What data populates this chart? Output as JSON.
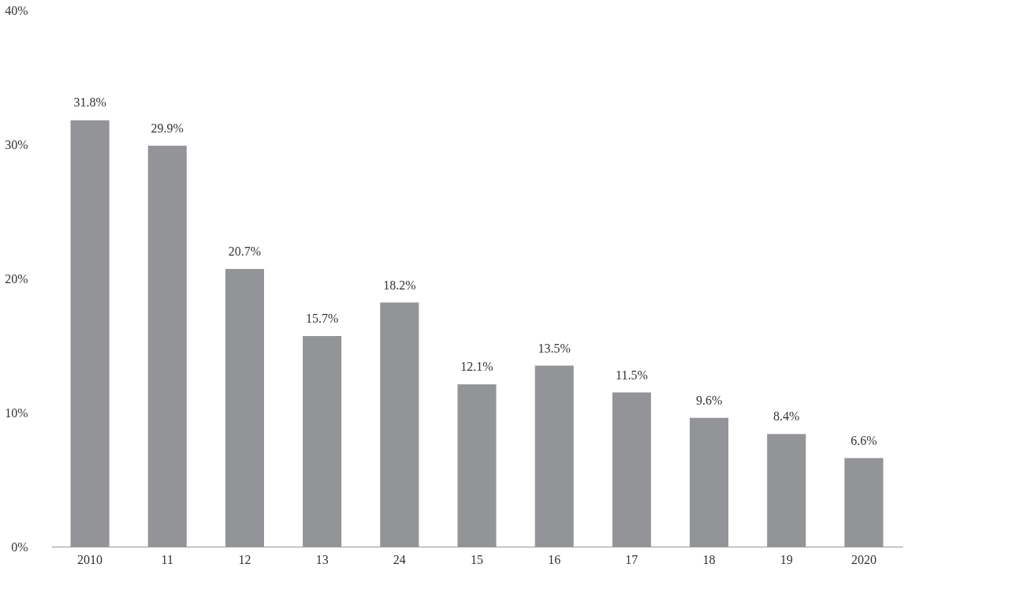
{
  "chart_data": {
    "type": "bar",
    "categories": [
      "2010",
      "11",
      "12",
      "13",
      "24",
      "15",
      "16",
      "17",
      "18",
      "19",
      "2020"
    ],
    "values": [
      31.8,
      29.9,
      20.7,
      15.7,
      18.2,
      12.1,
      13.5,
      11.5,
      9.6,
      8.4,
      6.6
    ],
    "color": "#939497",
    "value_labels": [
      "31.8%",
      "29.9%",
      "20.7%",
      "15.7%",
      "18.2%",
      "12.1%",
      "13.5%",
      "11.5%",
      "9.6%",
      "8.4%",
      "6.6%"
    ],
    "ylim": [
      0,
      40
    ],
    "yticks": [
      {
        "value": 0,
        "label": "0%"
      },
      {
        "value": 10,
        "label": "10%"
      },
      {
        "value": 20,
        "label": "20%"
      },
      {
        "value": 30,
        "label": "30%"
      },
      {
        "value": 40,
        "label": "40%"
      }
    ],
    "grid": false
  }
}
